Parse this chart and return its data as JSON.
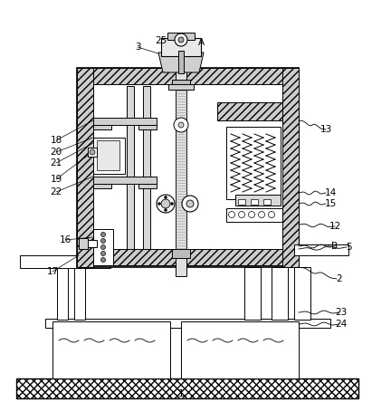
{
  "bg_color": "#ffffff",
  "lc": "#000000",
  "wall_fc": "#c8c8c8",
  "shaft_fc": "#d8d8d8",
  "hatch_wall": "////",
  "hatch_ground": "xxxx",
  "hatch_tank": ".....",
  "labels": [
    [
      "1",
      200,
      435
    ],
    [
      "2",
      375,
      308
    ],
    [
      "3",
      152,
      52
    ],
    [
      "5",
      385,
      273
    ],
    [
      "12",
      370,
      250
    ],
    [
      "13",
      360,
      143
    ],
    [
      "14",
      365,
      213
    ],
    [
      "15",
      365,
      225
    ],
    [
      "16",
      72,
      265
    ],
    [
      "17",
      58,
      300
    ],
    [
      "18",
      62,
      155
    ],
    [
      "19",
      62,
      198
    ],
    [
      "20",
      62,
      168
    ],
    [
      "21",
      62,
      180
    ],
    [
      "22",
      62,
      212
    ],
    [
      "23",
      377,
      345
    ],
    [
      "24",
      377,
      358
    ],
    [
      "25",
      178,
      45
    ],
    [
      "A",
      222,
      47
    ],
    [
      "B",
      370,
      272
    ]
  ]
}
